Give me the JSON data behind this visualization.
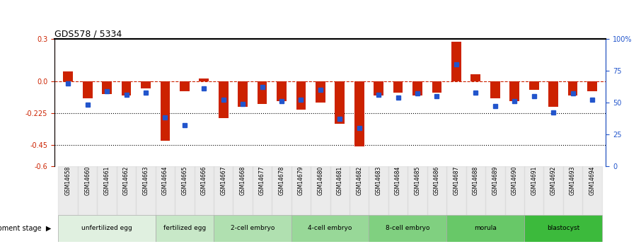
{
  "title": "GDS578 / 5334",
  "samples": [
    "GSM14658",
    "GSM14660",
    "GSM14661",
    "GSM14662",
    "GSM14663",
    "GSM14664",
    "GSM14665",
    "GSM14666",
    "GSM14667",
    "GSM14668",
    "GSM14677",
    "GSM14678",
    "GSM14679",
    "GSM14680",
    "GSM14681",
    "GSM14682",
    "GSM14683",
    "GSM14684",
    "GSM14685",
    "GSM14686",
    "GSM14687",
    "GSM14688",
    "GSM14689",
    "GSM14690",
    "GSM14691",
    "GSM14692",
    "GSM14693",
    "GSM14694"
  ],
  "log_ratio": [
    0.07,
    -0.12,
    -0.09,
    -0.1,
    -0.05,
    -0.42,
    -0.07,
    0.02,
    -0.26,
    -0.18,
    -0.16,
    -0.14,
    -0.2,
    -0.15,
    -0.3,
    -0.46,
    -0.1,
    -0.08,
    -0.1,
    -0.08,
    0.28,
    0.05,
    -0.12,
    -0.14,
    -0.06,
    -0.18,
    -0.1,
    -0.07
  ],
  "percentile": [
    65,
    48,
    59,
    56,
    58,
    38,
    32,
    61,
    52,
    49,
    62,
    51,
    52,
    60,
    37,
    30,
    56,
    54,
    57,
    55,
    80,
    58,
    47,
    51,
    55,
    42,
    57,
    52
  ],
  "stage_labels": [
    "unfertilized egg",
    "fertilized egg",
    "2-cell embryo",
    "4-cell embryo",
    "8-cell embryo",
    "morula",
    "blastocyst"
  ],
  "stage_ranges": [
    [
      0,
      4
    ],
    [
      5,
      7
    ],
    [
      8,
      11
    ],
    [
      12,
      15
    ],
    [
      16,
      19
    ],
    [
      20,
      23
    ],
    [
      24,
      27
    ]
  ],
  "stage_colors": [
    "#e0f0e0",
    "#c8e8c8",
    "#b0e0b0",
    "#98d898",
    "#80d080",
    "#68c868",
    "#3cba3c"
  ],
  "bar_color": "#cc2200",
  "dot_color": "#2255cc",
  "ylim_left": [
    -0.6,
    0.3
  ],
  "ylim_right": [
    0,
    100
  ],
  "yticks_left": [
    0.3,
    0.0,
    -0.225,
    -0.45,
    -0.6
  ],
  "yticks_right": [
    100,
    75,
    50,
    25,
    0
  ],
  "background_color": "#ffffff"
}
